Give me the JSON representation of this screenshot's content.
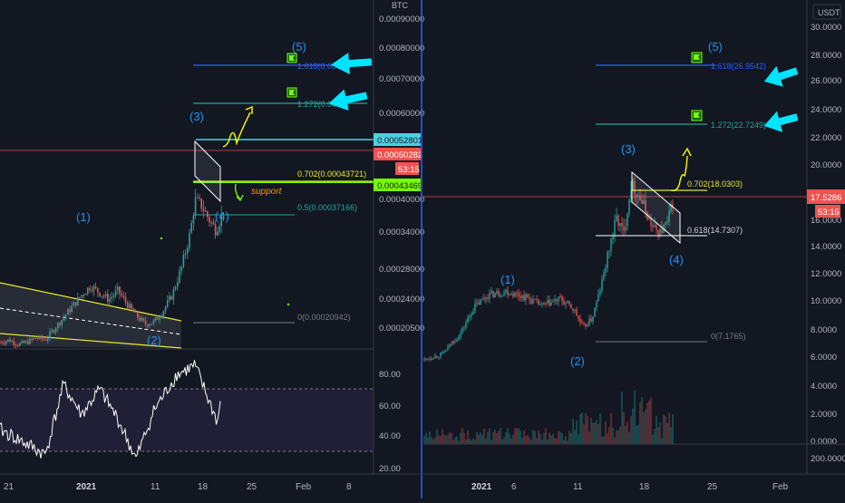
{
  "left": {
    "currency": "BTC",
    "price_ticks": [
      "0.00090000",
      "0.00080000",
      "0.00070000",
      "0.00060000",
      "0.00040000",
      "0.00034000",
      "0.00028000",
      "0.00024000",
      "0.00020500"
    ],
    "tags": {
      "cyan": "0.00052801",
      "current": "0.00050282",
      "countdown": "53:15",
      "green": "0.00043469"
    },
    "fib_levels": [
      {
        "label": "1.618(0.00073"
      },
      {
        "label": "1.272(0.00062"
      },
      {
        "label": "0.702(0.00043721)"
      },
      {
        "label": "0.5(0.00037166)"
      },
      {
        "label": "0(0.00020942)"
      }
    ],
    "waves": {
      "w1": "(1)",
      "w2": "(2)",
      "w3": "(3)",
      "w4": "(4)",
      "w5": "(5)"
    },
    "support_label": "support",
    "rsi_ticks": [
      "80.00",
      "60.00",
      "40.00",
      "20.00"
    ],
    "time_ticks": [
      "21",
      "2021",
      "11",
      "18",
      "25",
      "Feb",
      "8"
    ]
  },
  "right": {
    "currency": "USDT",
    "price_ticks": [
      "30.0000",
      "28.0000",
      "26.0000",
      "24.0000",
      "22.0000",
      "20.0000",
      "16.0000",
      "14.0000",
      "12.0000",
      "10.0000",
      "8.0000",
      "6.0000",
      "4.0000",
      "2.0000",
      "0.0000"
    ],
    "volume_tick": "200.0000",
    "tags": {
      "current": "17.5286",
      "countdown": "53:15"
    },
    "fib_levels": [
      {
        "label": "1.618(26.9542)"
      },
      {
        "label": "1.272(22.7249)"
      },
      {
        "label": "0.702(18.0303)"
      },
      {
        "label": "0.618(14.7307)"
      },
      {
        "label": "0(7.1765)"
      }
    ],
    "waves": {
      "w1": "(1)",
      "w2": "(2)",
      "w3": "(3)",
      "w4": "(4)",
      "w5": "(5)"
    },
    "time_ticks": [
      "2021",
      "6",
      "11",
      "18",
      "25",
      "Feb"
    ]
  },
  "colors": {
    "background": "#131722",
    "up": "#26a69a",
    "down": "#ef5350",
    "wave_label": "#2196f3",
    "fib_blue": "#2962ff",
    "arrow_cyan": "#00e5ff",
    "arrow_yellow": "#ffff00",
    "rsi_line": "#ffffff",
    "rsi_band": "#7e57c2"
  },
  "chart_data": [
    {
      "type": "line",
      "pair": "BTC",
      "price_range": [
        0.00018,
        0.00092
      ],
      "close_path": [
        [
          0,
          0.000195
        ],
        [
          10,
          0.0002
        ],
        [
          20,
          0.00019
        ],
        [
          30,
          0.000195
        ],
        [
          40,
          0.000205
        ],
        [
          50,
          0.0002
        ],
        [
          60,
          0.000225
        ],
        [
          70,
          0.00025
        ],
        [
          80,
          0.000275
        ],
        [
          90,
          0.0003
        ],
        [
          100,
          0.00032
        ],
        [
          110,
          0.000305
        ],
        [
          120,
          0.00029
        ],
        [
          130,
          0.00031
        ],
        [
          140,
          0.00028
        ],
        [
          150,
          0.000255
        ],
        [
          160,
          0.000235
        ],
        [
          170,
          0.00024
        ],
        [
          180,
          0.000265
        ],
        [
          190,
          0.0003
        ],
        [
          200,
          0.00036
        ],
        [
          210,
          0.00044
        ],
        [
          215,
          0.00051
        ],
        [
          222,
          0.0005
        ],
        [
          230,
          0.00047
        ],
        [
          238,
          0.000445
        ],
        [
          245,
          0.00048
        ],
        [
          248,
          0.000503
        ]
      ],
      "rsi_range": [
        15,
        95
      ],
      "rsi_levels": [
        70,
        30
      ]
    },
    {
      "type": "line",
      "pair": "USDT",
      "price_range": [
        -1,
        31
      ],
      "close_path": [
        [
          0,
          5.2
        ],
        [
          20,
          5.6
        ],
        [
          40,
          7.2
        ],
        [
          55,
          9.2
        ],
        [
          70,
          10.1
        ],
        [
          90,
          10.4
        ],
        [
          110,
          10.0
        ],
        [
          130,
          9.3
        ],
        [
          150,
          9.8
        ],
        [
          165,
          9.0
        ],
        [
          175,
          7.6
        ],
        [
          185,
          8.3
        ],
        [
          195,
          10.8
        ],
        [
          205,
          14.0
        ],
        [
          212,
          16.0
        ],
        [
          220,
          14.8
        ],
        [
          228,
          18.6
        ],
        [
          236,
          17.8
        ],
        [
          244,
          16.6
        ],
        [
          252,
          15.2
        ],
        [
          260,
          14.9
        ],
        [
          268,
          15.6
        ],
        [
          275,
          17.5
        ]
      ]
    }
  ]
}
